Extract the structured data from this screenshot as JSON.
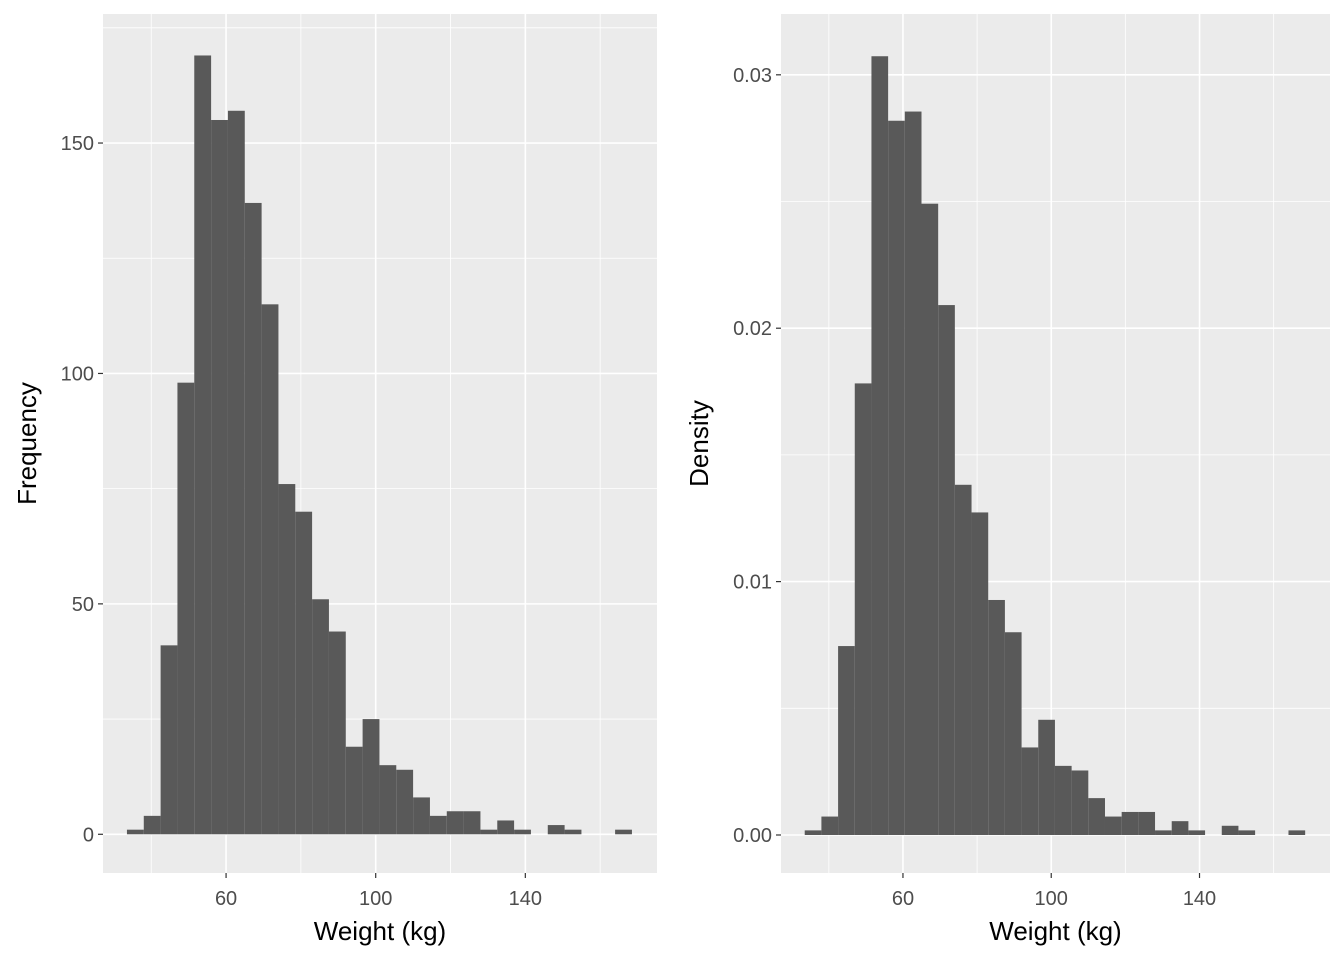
{
  "chart_data": [
    {
      "type": "bar",
      "subtype": "histogram",
      "xlabel": "Weight (kg)",
      "ylabel": "Frequency",
      "xlim": [
        27.1,
        175.2
      ],
      "ylim": [
        -8.4,
        178
      ],
      "x_ticks": [
        "60",
        "100",
        "140"
      ],
      "y_ticks": [
        "0",
        "50",
        "100",
        "150"
      ],
      "x_tick_values": [
        60,
        100,
        140
      ],
      "y_tick_values": [
        0,
        50,
        100,
        150
      ],
      "bin_start": 33.5,
      "bin_width": 4.5,
      "values": [
        1,
        4,
        41,
        98,
        169,
        155,
        157,
        137,
        115,
        76,
        70,
        51,
        44,
        19,
        25,
        15,
        14,
        8,
        4,
        5,
        5,
        1,
        3,
        1,
        0,
        2,
        1,
        0,
        0,
        1
      ],
      "bar_color": "#595959",
      "panel_background": "#EBEBEB",
      "grid": true
    },
    {
      "type": "bar",
      "subtype": "histogram",
      "xlabel": "Weight (kg)",
      "ylabel": "Density",
      "xlim": [
        27.1,
        175.2
      ],
      "ylim": [
        -0.0015,
        0.0324
      ],
      "x_ticks": [
        "60",
        "100",
        "140"
      ],
      "y_ticks": [
        "0.00",
        "0.01",
        "0.02",
        "0.03"
      ],
      "x_tick_values": [
        60,
        100,
        140
      ],
      "y_tick_values": [
        0,
        0.01,
        0.02,
        0.03
      ],
      "bin_start": 33.5,
      "bin_width": 4.5,
      "total_count": 1222,
      "bar_color": "#595959",
      "panel_background": "#EBEBEB",
      "grid": true
    }
  ]
}
